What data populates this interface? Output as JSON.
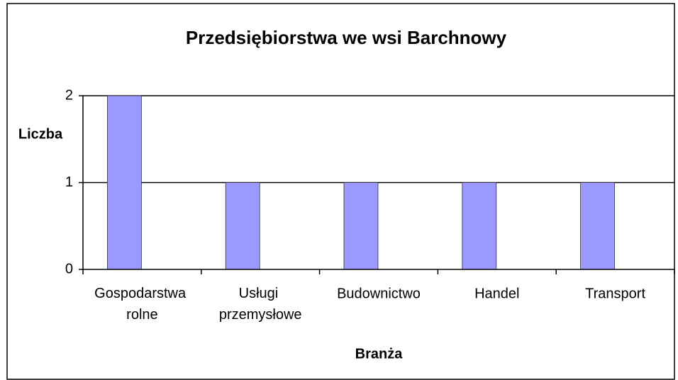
{
  "chart_data": {
    "type": "bar",
    "title": "Przedsiębiorstwa we wsi Barchnowy",
    "x_label": "Branża",
    "y_label": "Liczba",
    "categories": [
      "Gospodarstwa rolne",
      "Usługi przemysłowe",
      "Budownictwo",
      "Handel",
      "Transport"
    ],
    "values": [
      2,
      1,
      1,
      1,
      1
    ],
    "color": "#9999ff",
    "ylim": [
      0,
      2
    ],
    "yticks": [
      0,
      1,
      2
    ],
    "grid": true
  }
}
